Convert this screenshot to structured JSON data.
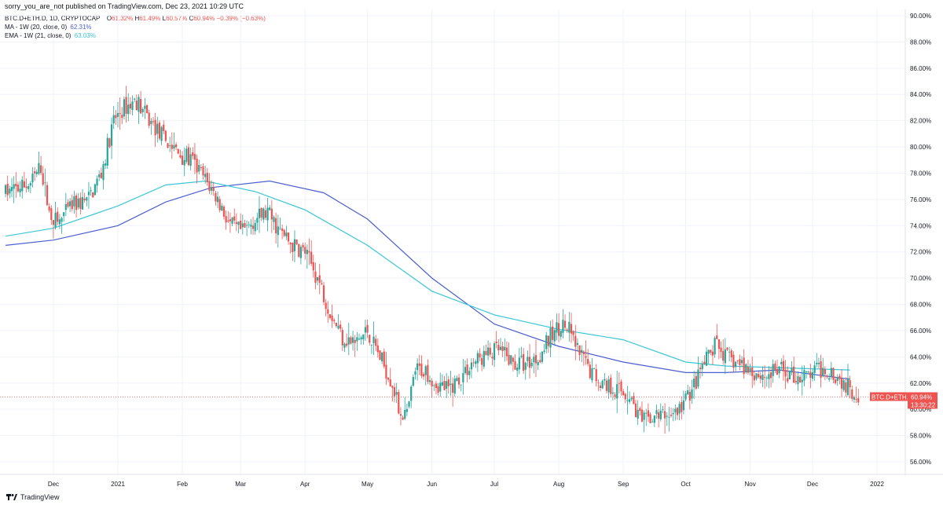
{
  "header": {
    "publisher_line": "sorry_you_are_not published on TradingView.com, Dec 23, 2021 10:29 UTC"
  },
  "legend": {
    "symbol": "BTC.D+ETH.D, 1D, CRYPTOCAP",
    "ohlc": {
      "o_label": "O",
      "o": "61.32%",
      "h_label": "H",
      "h": "61.49%",
      "l_label": "L",
      "l": "60.57%",
      "c_label": "C",
      "c": "60.94%",
      "change": "−0.39% (−0.63%)"
    },
    "ma": {
      "label": "MA - 1W (20, close, 0)",
      "value": "62.31%"
    },
    "ema": {
      "label": "EMA - 1W (21, close, 0)",
      "value": "63.03%"
    }
  },
  "price_tag": {
    "symbol": "BTC.D+ETH.D",
    "price": "60.94%",
    "countdown": "13:30:22"
  },
  "footer": {
    "brand": "TradingView"
  },
  "colors": {
    "up": "#26a69a",
    "down": "#ef5350",
    "ma": "#4a5fd0",
    "ema": "#3cc7d6",
    "grid": "#f0f3fa",
    "price_line": "#ef5350"
  },
  "chart_data": {
    "type": "candlestick",
    "ylim": [
      55,
      90
    ],
    "y_ticks": [
      "56.00%",
      "58.00%",
      "60.00%",
      "62.00%",
      "64.00%",
      "66.00%",
      "68.00%",
      "70.00%",
      "72.00%",
      "74.00%",
      "76.00%",
      "78.00%",
      "80.00%",
      "82.00%",
      "84.00%",
      "86.00%",
      "88.00%",
      "90.00%"
    ],
    "x_ticks": [
      "Dec",
      "2021",
      "Feb",
      "Mar",
      "Apr",
      "May",
      "Jun",
      "Jul",
      "Aug",
      "Sep",
      "Oct",
      "Nov",
      "Dec",
      "2022"
    ],
    "date_range": [
      "2020-11-08",
      "2021-12-23"
    ],
    "close_path": [
      [
        "2020-11-08",
        76.5
      ],
      [
        "2020-11-20",
        77.2
      ],
      [
        "2020-11-25",
        78.5
      ],
      [
        "2020-11-29",
        75.0
      ],
      [
        "2020-12-03",
        74.2
      ],
      [
        "2020-12-10",
        75.5
      ],
      [
        "2020-12-18",
        76.0
      ],
      [
        "2020-12-24",
        78.0
      ],
      [
        "2020-12-30",
        82.0
      ],
      [
        "2021-01-04",
        83.0
      ],
      [
        "2021-01-10",
        83.5
      ],
      [
        "2021-01-16",
        82.0
      ],
      [
        "2021-01-24",
        80.5
      ],
      [
        "2021-01-30",
        79.5
      ],
      [
        "2021-02-05",
        79.0
      ],
      [
        "2021-02-12",
        77.5
      ],
      [
        "2021-02-18",
        76.0
      ],
      [
        "2021-02-24",
        74.0
      ],
      [
        "2021-03-02",
        73.5
      ],
      [
        "2021-03-08",
        74.5
      ],
      [
        "2021-03-14",
        75.0
      ],
      [
        "2021-03-20",
        73.5
      ],
      [
        "2021-03-26",
        72.5
      ],
      [
        "2021-04-01",
        72.0
      ],
      [
        "2021-04-07",
        70.0
      ],
      [
        "2021-04-13",
        67.5
      ],
      [
        "2021-04-19",
        65.5
      ],
      [
        "2021-04-25",
        65.0
      ],
      [
        "2021-05-01",
        66.0
      ],
      [
        "2021-05-07",
        64.0
      ],
      [
        "2021-05-13",
        62.0
      ],
      [
        "2021-05-16",
        60.0
      ],
      [
        "2021-05-20",
        59.5
      ],
      [
        "2021-05-24",
        63.0
      ],
      [
        "2021-05-29",
        63.0
      ],
      [
        "2021-06-03",
        62.0
      ],
      [
        "2021-06-09",
        61.5
      ],
      [
        "2021-06-15",
        62.5
      ],
      [
        "2021-06-20",
        63.5
      ],
      [
        "2021-06-26",
        64.0
      ],
      [
        "2021-07-03",
        64.5
      ],
      [
        "2021-07-10",
        63.5
      ],
      [
        "2021-07-16",
        63.5
      ],
      [
        "2021-07-22",
        64.0
      ],
      [
        "2021-07-28",
        65.5
      ],
      [
        "2021-08-02",
        66.5
      ],
      [
        "2021-08-06",
        66.0
      ],
      [
        "2021-08-10",
        64.5
      ],
      [
        "2021-08-16",
        63.0
      ],
      [
        "2021-08-22",
        62.0
      ],
      [
        "2021-08-30",
        61.5
      ],
      [
        "2021-09-04",
        61.0
      ],
      [
        "2021-09-10",
        59.0
      ],
      [
        "2021-09-16",
        59.5
      ],
      [
        "2021-09-22",
        59.5
      ],
      [
        "2021-09-28",
        60.0
      ],
      [
        "2021-10-04",
        61.5
      ],
      [
        "2021-10-10",
        63.5
      ],
      [
        "2021-10-16",
        65.0
      ],
      [
        "2021-10-20",
        64.0
      ],
      [
        "2021-10-26",
        63.5
      ],
      [
        "2021-11-01",
        63.0
      ],
      [
        "2021-11-08",
        62.5
      ],
      [
        "2021-11-15",
        63.0
      ],
      [
        "2021-11-22",
        62.5
      ],
      [
        "2021-11-28",
        62.5
      ],
      [
        "2021-12-04",
        63.0
      ],
      [
        "2021-12-10",
        63.0
      ],
      [
        "2021-12-16",
        62.0
      ],
      [
        "2021-12-21",
        61.3
      ],
      [
        "2021-12-23",
        60.94
      ]
    ],
    "series": [
      {
        "name": "MA - 1W (20, close, 0)",
        "points": [
          [
            "2020-11-08",
            72.5
          ],
          [
            "2020-12-01",
            72.9
          ],
          [
            "2021-01-01",
            74.0
          ],
          [
            "2021-01-24",
            75.8
          ],
          [
            "2021-02-15",
            76.9
          ],
          [
            "2021-03-15",
            77.4
          ],
          [
            "2021-04-10",
            76.5
          ],
          [
            "2021-05-01",
            74.5
          ],
          [
            "2021-06-01",
            70.0
          ],
          [
            "2021-07-01",
            66.5
          ],
          [
            "2021-08-01",
            64.8
          ],
          [
            "2021-09-01",
            63.6
          ],
          [
            "2021-10-01",
            62.8
          ],
          [
            "2021-10-20",
            62.8
          ],
          [
            "2021-11-15",
            63.0
          ],
          [
            "2021-12-19",
            62.3
          ]
        ]
      },
      {
        "name": "EMA - 1W (21, close, 0)",
        "points": [
          [
            "2020-11-08",
            73.2
          ],
          [
            "2020-12-01",
            73.8
          ],
          [
            "2021-01-01",
            75.5
          ],
          [
            "2021-01-24",
            77.1
          ],
          [
            "2021-02-12",
            77.4
          ],
          [
            "2021-03-08",
            76.6
          ],
          [
            "2021-04-01",
            75.2
          ],
          [
            "2021-05-01",
            72.5
          ],
          [
            "2021-06-01",
            69.0
          ],
          [
            "2021-07-01",
            67.2
          ],
          [
            "2021-08-01",
            66.1
          ],
          [
            "2021-09-01",
            65.3
          ],
          [
            "2021-10-01",
            63.6
          ],
          [
            "2021-10-20",
            63.3
          ],
          [
            "2021-12-19",
            63.0
          ]
        ]
      }
    ]
  }
}
